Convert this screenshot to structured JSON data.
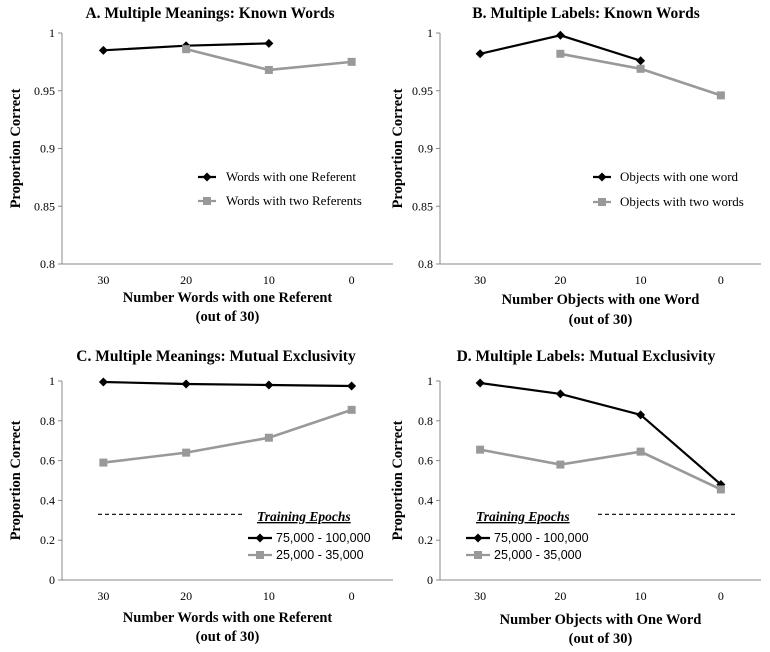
{
  "chart_data": [
    {
      "type": "line",
      "title": "A. Multiple Meanings: Known Words",
      "xlabel": "Number Words with one Referent",
      "xlabel2": "(out of 30)",
      "ylabel": "Proportion Correct",
      "categories": [
        "30",
        "20",
        "10",
        "0"
      ],
      "ylim": [
        0.8,
        1
      ],
      "yticks": [
        "0.8",
        "0.85",
        "0.9",
        "0.95",
        "1"
      ],
      "series": [
        {
          "name": "Words with one Referent",
          "values": [
            0.985,
            0.989,
            0.991,
            null
          ],
          "color": "#000000",
          "marker": "diamond"
        },
        {
          "name": "Words with two Referents",
          "values": [
            null,
            0.986,
            0.968,
            0.975
          ],
          "color": "#999999",
          "marker": "square"
        }
      ],
      "legend_position": "right-middle",
      "legend_title": ""
    },
    {
      "type": "line",
      "title": "B. Multiple Labels: Known Words",
      "xlabel": "Number Objects with one Word",
      "xlabel2": "(out of 30)",
      "ylabel": "Proportion Correct",
      "categories": [
        "30",
        "20",
        "10",
        "0"
      ],
      "ylim": [
        0.8,
        1
      ],
      "yticks": [
        "0.8",
        "0.85",
        "0.9",
        "0.95",
        "1"
      ],
      "series": [
        {
          "name": "Objects with one word",
          "values": [
            0.982,
            0.998,
            0.976,
            null
          ],
          "color": "#000000",
          "marker": "diamond"
        },
        {
          "name": "Objects with two words",
          "values": [
            null,
            0.982,
            0.969,
            0.946
          ],
          "color": "#999999",
          "marker": "square"
        }
      ],
      "legend_position": "right-middle",
      "legend_title": ""
    },
    {
      "type": "line",
      "title": "C. Multiple Meanings: Mutual Exclusivity",
      "xlabel": "Number Words with one Referent",
      "xlabel2": "(out of 30)",
      "ylabel": "Proportion Correct",
      "categories": [
        "30",
        "20",
        "10",
        "0"
      ],
      "ylim": [
        0,
        1
      ],
      "yticks": [
        "0",
        "0.2",
        "0.4",
        "0.6",
        "0.8",
        "1"
      ],
      "series": [
        {
          "name": "75,000 - 100,000",
          "values": [
            0.995,
            0.985,
            0.98,
            0.975
          ],
          "color": "#000000",
          "marker": "diamond"
        },
        {
          "name": "25,000 - 35,000",
          "values": [
            0.59,
            0.64,
            0.715,
            0.855
          ],
          "color": "#999999",
          "marker": "square"
        }
      ],
      "reference_line": 0.33,
      "legend_position": "bottom-right",
      "legend_title": "Training Epochs"
    },
    {
      "type": "line",
      "title": "D. Multiple Labels: Mutual Exclusivity",
      "xlabel": "Number Objects with One Word",
      "xlabel2": "(out of 30)",
      "ylabel": "Proportion Correct",
      "categories": [
        "30",
        "20",
        "10",
        "0"
      ],
      "ylim": [
        0,
        1
      ],
      "yticks": [
        "0",
        "0.2",
        "0.4",
        "0.6",
        "0.8",
        "1"
      ],
      "series": [
        {
          "name": "75,000 - 100,000",
          "values": [
            0.99,
            0.935,
            0.83,
            0.48
          ],
          "color": "#000000",
          "marker": "diamond"
        },
        {
          "name": "25,000 - 35,000",
          "values": [
            0.655,
            0.58,
            0.645,
            0.455
          ],
          "color": "#999999",
          "marker": "square"
        }
      ],
      "reference_line": 0.33,
      "legend_position": "bottom-left",
      "legend_title": "Training Epochs"
    }
  ]
}
